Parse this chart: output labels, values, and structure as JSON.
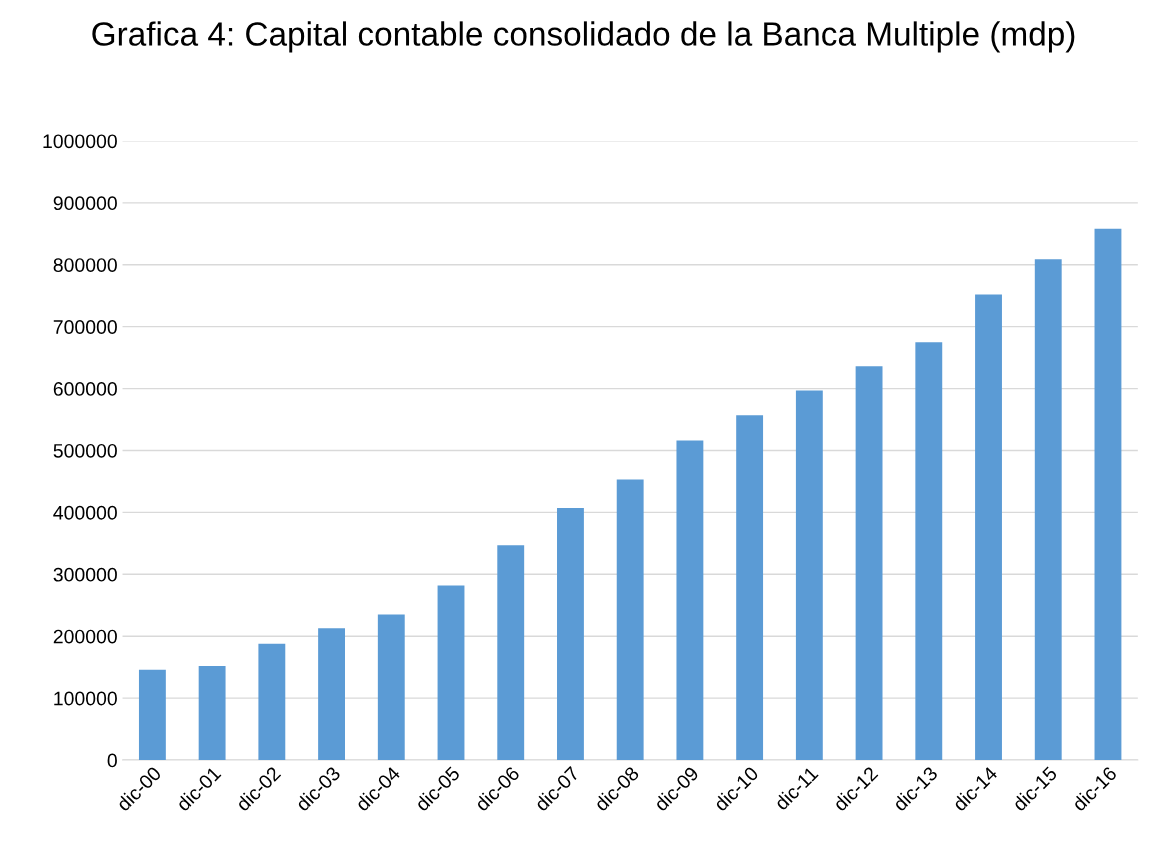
{
  "chart_data": {
    "type": "bar",
    "title": "Grafica 4: Capital contable consolidado de la Banca Multiple (mdp)",
    "categories": [
      "dic-00",
      "dic-01",
      "dic-02",
      "dic-03",
      "dic-04",
      "dic-05",
      "dic-06",
      "dic-07",
      "dic-08",
      "dic-09",
      "dic-10",
      "dic-11",
      "dic-12",
      "dic-13",
      "dic-14",
      "dic-15",
      "dic-16"
    ],
    "values": [
      146000,
      152000,
      188000,
      213000,
      235000,
      282000,
      347000,
      407000,
      453000,
      516000,
      557000,
      597000,
      636000,
      675000,
      752000,
      809000,
      858000
    ],
    "color": "#5b9bd5",
    "ylim": [
      0,
      1000000
    ],
    "yticks": [
      0,
      100000,
      200000,
      300000,
      400000,
      500000,
      600000,
      700000,
      800000,
      900000,
      1000000
    ],
    "grid": "y"
  }
}
